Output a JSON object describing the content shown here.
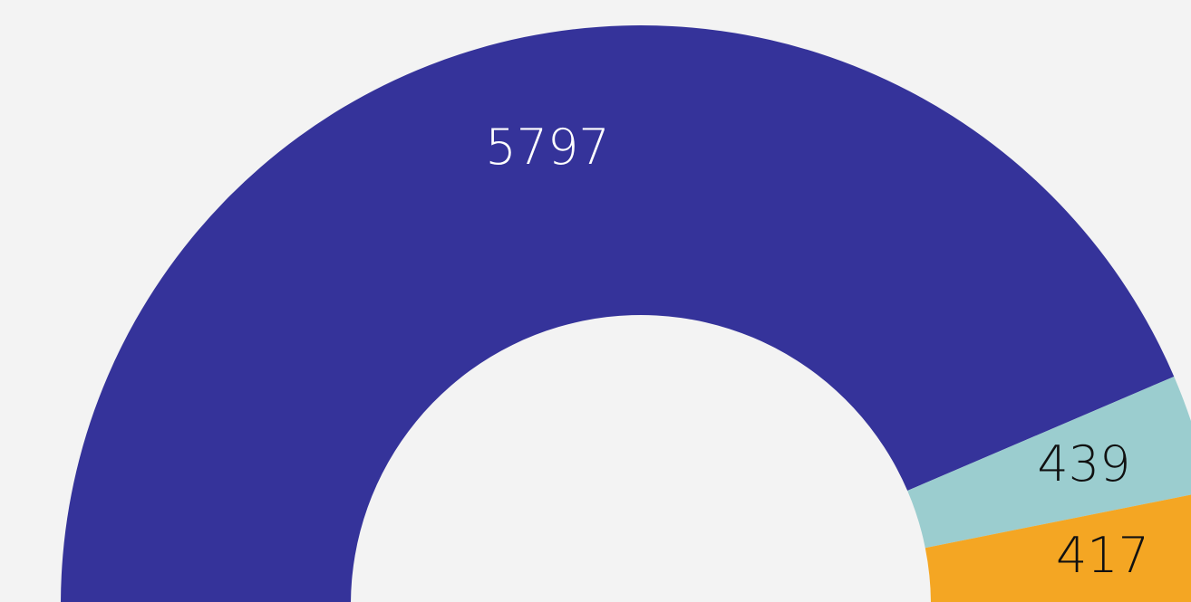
{
  "chart_data": {
    "type": "donut",
    "categories": [
      null,
      null,
      null
    ],
    "values": [
      5797,
      439,
      417
    ],
    "colors": [
      "#35339a",
      "#9bcdcf",
      "#f4a623"
    ]
  }
}
